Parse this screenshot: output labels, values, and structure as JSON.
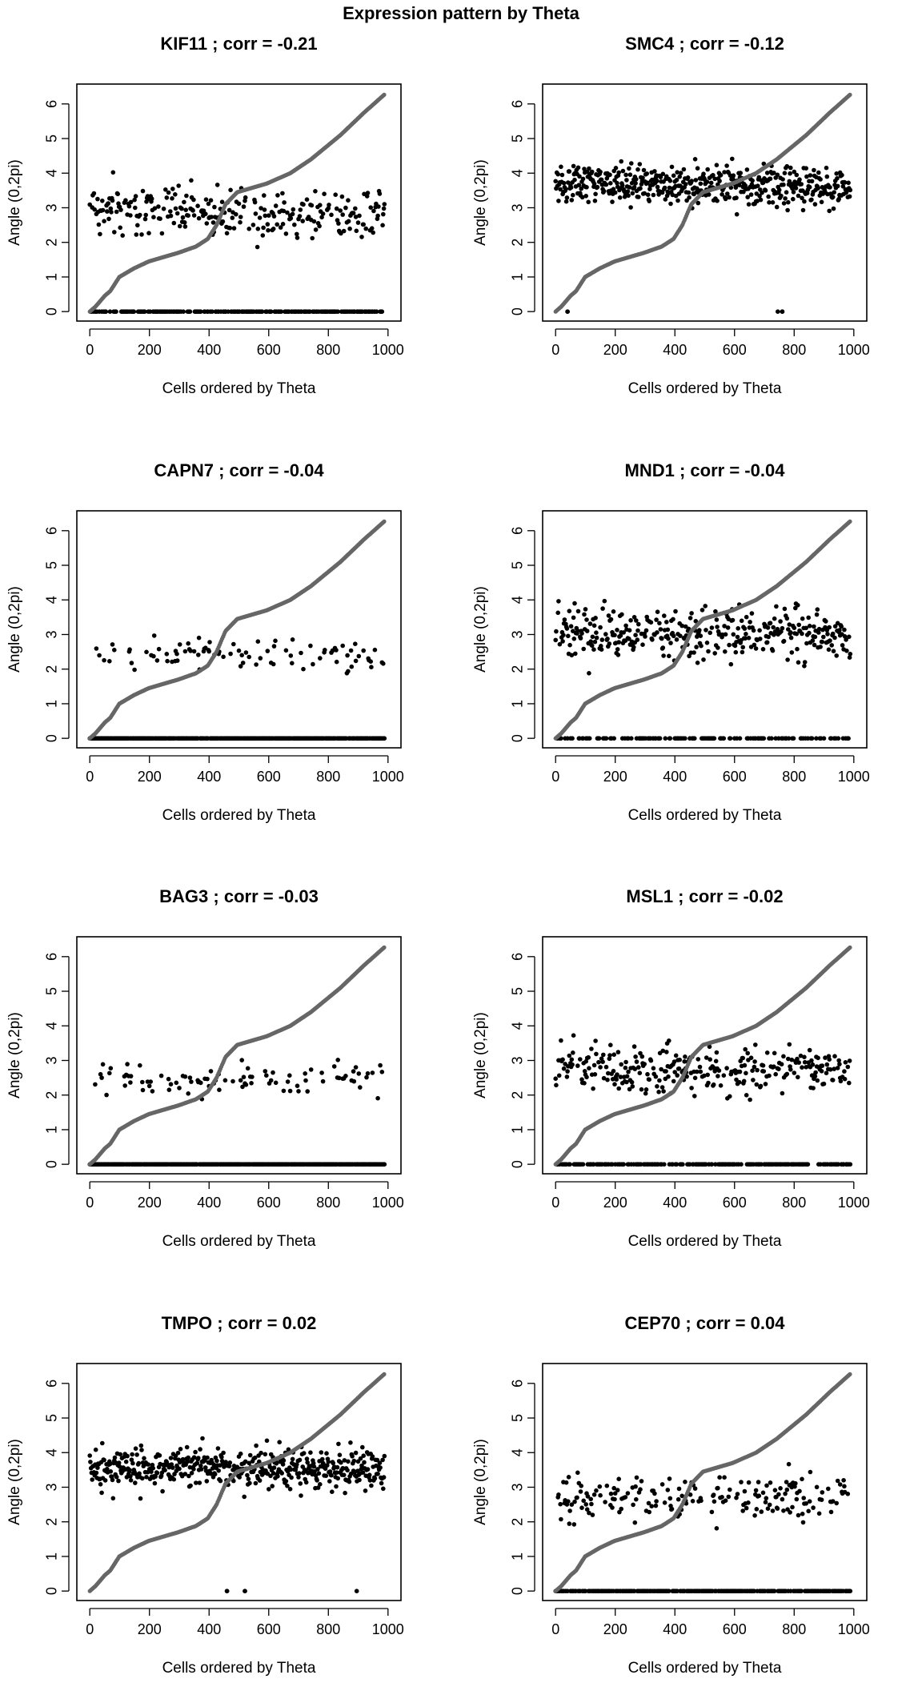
{
  "figure": {
    "title": "Expression pattern by Theta"
  },
  "colors": {
    "background": "#ffffff",
    "points": "#000000",
    "theta_curve": "#666666",
    "axis": "#000000"
  },
  "chart_data": [
    {
      "type": "scatter",
      "panel": 1,
      "title": "KIF11 ; corr =  -0.21",
      "gene": "KIF11",
      "corr": -0.21,
      "xlabel": "Cells ordered by Theta",
      "ylabel": "Angle (0,2pi)",
      "xlim": [
        0,
        1000
      ],
      "ylim": [
        0,
        6.3
      ],
      "xticks": [
        0,
        200,
        400,
        600,
        800,
        1000
      ],
      "yticks": [
        0,
        1,
        2,
        3,
        4,
        5,
        6
      ],
      "grid": false,
      "n_cells": 990,
      "series": [
        {
          "role": "expression",
          "band": {
            "center": 2.9,
            "spread": 0.45,
            "drift": -0.25
          },
          "zero_fraction": 0.45
        },
        {
          "role": "theta",
          "shape": "standard"
        }
      ]
    },
    {
      "type": "scatter",
      "panel": 2,
      "title": "SMC4 ; corr =  -0.12",
      "gene": "SMC4",
      "corr": -0.12,
      "xlabel": "Cells ordered by Theta",
      "ylabel": "Angle (0,2pi)",
      "xlim": [
        0,
        1000
      ],
      "ylim": [
        0,
        6.3
      ],
      "xticks": [
        0,
        200,
        400,
        600,
        800,
        1000
      ],
      "yticks": [
        0,
        1,
        2,
        3,
        4,
        5,
        6
      ],
      "grid": false,
      "n_cells": 990,
      "series": [
        {
          "role": "expression",
          "band": {
            "center": 3.65,
            "spread": 0.35,
            "drift": -0.1
          },
          "zero_x": [
            40,
            745,
            760
          ]
        },
        {
          "role": "theta",
          "shape": "standard"
        }
      ]
    },
    {
      "type": "scatter",
      "panel": 3,
      "title": "CAPN7 ; corr =  -0.04",
      "gene": "CAPN7",
      "corr": -0.04,
      "xlabel": "Cells ordered by Theta",
      "ylabel": "Angle (0,2pi)",
      "xlim": [
        0,
        1000
      ],
      "ylim": [
        0,
        6.3
      ],
      "xticks": [
        0,
        200,
        400,
        600,
        800,
        1000
      ],
      "yticks": [
        0,
        1,
        2,
        3,
        4,
        5,
        6
      ],
      "grid": false,
      "n_cells": 990,
      "series": [
        {
          "role": "expression",
          "band": {
            "center": 2.4,
            "spread": 0.3,
            "drift": 0
          },
          "zero_fraction": 0.8
        },
        {
          "role": "theta",
          "shape": "standard"
        }
      ]
    },
    {
      "type": "scatter",
      "panel": 4,
      "title": "MND1 ; corr =  -0.04",
      "gene": "MND1",
      "corr": -0.04,
      "xlabel": "Cells ordered by Theta",
      "ylabel": "Angle (0,2pi)",
      "xlim": [
        0,
        1000
      ],
      "ylim": [
        0,
        6.3
      ],
      "xticks": [
        0,
        200,
        400,
        600,
        800,
        1000
      ],
      "yticks": [
        0,
        1,
        2,
        3,
        4,
        5,
        6
      ],
      "grid": false,
      "n_cells": 990,
      "series": [
        {
          "role": "expression",
          "band": {
            "center": 3.0,
            "spread": 0.45,
            "drift": 0
          },
          "zero_fraction": 0.3
        },
        {
          "role": "theta",
          "shape": "standard"
        }
      ]
    },
    {
      "type": "scatter",
      "panel": 5,
      "title": "BAG3 ; corr =  -0.03",
      "gene": "BAG3",
      "corr": -0.03,
      "xlabel": "Cells ordered by Theta",
      "ylabel": "Angle (0,2pi)",
      "xlim": [
        0,
        1000
      ],
      "ylim": [
        0,
        6.3
      ],
      "xticks": [
        0,
        200,
        400,
        600,
        800,
        1000
      ],
      "yticks": [
        0,
        1,
        2,
        3,
        4,
        5,
        6
      ],
      "grid": false,
      "n_cells": 990,
      "series": [
        {
          "role": "expression",
          "band": {
            "center": 2.45,
            "spread": 0.3,
            "drift": 0
          },
          "zero_fraction": 0.8
        },
        {
          "role": "theta",
          "shape": "standard"
        }
      ]
    },
    {
      "type": "scatter",
      "panel": 6,
      "title": "MSL1 ; corr =  -0.02",
      "gene": "MSL1",
      "corr": -0.02,
      "xlabel": "Cells ordered by Theta",
      "ylabel": "Angle (0,2pi)",
      "xlim": [
        0,
        1000
      ],
      "ylim": [
        0,
        6.3
      ],
      "xticks": [
        0,
        200,
        400,
        600,
        800,
        1000
      ],
      "yticks": [
        0,
        1,
        2,
        3,
        4,
        5,
        6
      ],
      "grid": false,
      "n_cells": 990,
      "series": [
        {
          "role": "expression",
          "band": {
            "center": 2.75,
            "spread": 0.4,
            "drift": 0
          },
          "zero_fraction": 0.4
        },
        {
          "role": "theta",
          "shape": "standard"
        }
      ]
    },
    {
      "type": "scatter",
      "panel": 7,
      "title": "TMPO ; corr =  0.02",
      "gene": "TMPO",
      "corr": 0.02,
      "xlabel": "Cells ordered by Theta",
      "ylabel": "Angle (0,2pi)",
      "xlim": [
        0,
        1000
      ],
      "ylim": [
        0,
        6.3
      ],
      "xticks": [
        0,
        200,
        400,
        600,
        800,
        1000
      ],
      "yticks": [
        0,
        1,
        2,
        3,
        4,
        5,
        6
      ],
      "grid": false,
      "n_cells": 990,
      "series": [
        {
          "role": "expression",
          "band": {
            "center": 3.55,
            "spread": 0.35,
            "drift": 0
          },
          "zero_x": [
            460,
            520,
            895
          ]
        },
        {
          "role": "theta",
          "shape": "standard"
        }
      ]
    },
    {
      "type": "scatter",
      "panel": 8,
      "title": "CEP70 ; corr =  0.04",
      "gene": "CEP70",
      "corr": 0.04,
      "xlabel": "Cells ordered by Theta",
      "ylabel": "Angle (0,2pi)",
      "xlim": [
        0,
        1000
      ],
      "ylim": [
        0,
        6.3
      ],
      "xticks": [
        0,
        200,
        400,
        600,
        800,
        1000
      ],
      "yticks": [
        0,
        1,
        2,
        3,
        4,
        5,
        6
      ],
      "grid": false,
      "n_cells": 990,
      "series": [
        {
          "role": "expression",
          "band": {
            "center": 2.7,
            "spread": 0.4,
            "drift": 0.1
          },
          "zero_fraction": 0.55
        },
        {
          "role": "theta",
          "shape": "standard"
        }
      ]
    }
  ]
}
